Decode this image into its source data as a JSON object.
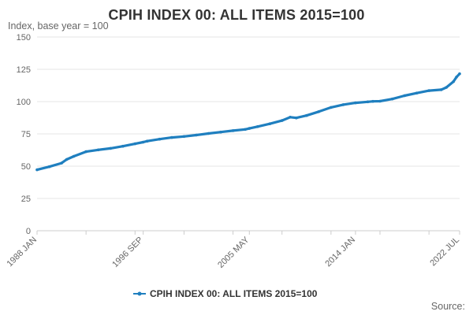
{
  "colors": {
    "series": "#1f7fbf",
    "grid": "#e6e6e6",
    "axis": "#cccccc",
    "text": "#333333",
    "muted": "#666666"
  },
  "source_label": "Source:",
  "chart_data": {
    "type": "line",
    "title": "CPIH INDEX 00: ALL ITEMS 2015=100",
    "subtitle": "Index, base year = 100",
    "xlabel": "",
    "ylabel": "",
    "ylim": [
      0,
      150
    ],
    "yticks": [
      0,
      25,
      50,
      75,
      100,
      125,
      150
    ],
    "xlim": [
      "1988 JAN",
      "2022 JUL"
    ],
    "xticks": [
      "1988 JAN",
      "1996 SEP",
      "2005 MAY",
      "2014 JAN",
      "2022 JUL"
    ],
    "grid": true,
    "legend": "bottom",
    "series": [
      {
        "name": "CPIH INDEX 00: ALL ITEMS 2015=100",
        "points": [
          [
            "1988 JAN",
            47.2
          ],
          [
            "1989 JAN",
            49.6
          ],
          [
            "1990 JAN",
            52.4
          ],
          [
            "1990 JUN",
            55.2
          ],
          [
            "1991 JAN",
            57.6
          ],
          [
            "1992 JAN",
            61.2
          ],
          [
            "1993 JAN",
            62.6
          ],
          [
            "1994 JAN",
            63.8
          ],
          [
            "1995 JAN",
            65.4
          ],
          [
            "1996 JAN",
            67.3
          ],
          [
            "1996 SEP",
            68.6
          ],
          [
            "1997 JAN",
            69.4
          ],
          [
            "1998 JAN",
            70.9
          ],
          [
            "1999 JAN",
            72.2
          ],
          [
            "2000 JAN",
            73.0
          ],
          [
            "2001 JAN",
            74.1
          ],
          [
            "2002 JAN",
            75.3
          ],
          [
            "2003 JAN",
            76.4
          ],
          [
            "2004 JAN",
            77.5
          ],
          [
            "2005 JAN",
            78.5
          ],
          [
            "2005 MAY",
            79.2
          ],
          [
            "2006 JAN",
            80.6
          ],
          [
            "2007 JAN",
            82.8
          ],
          [
            "2008 JAN",
            85.3
          ],
          [
            "2008 SEP",
            87.9
          ],
          [
            "2009 MAR",
            87.4
          ],
          [
            "2010 JAN",
            89.2
          ],
          [
            "2011 JAN",
            92.2
          ],
          [
            "2012 JAN",
            95.5
          ],
          [
            "2013 JAN",
            97.6
          ],
          [
            "2014 JAN",
            99.0
          ],
          [
            "2015 JAN",
            99.8
          ],
          [
            "2015 JUN",
            100.2
          ],
          [
            "2016 JAN",
            100.3
          ],
          [
            "2017 JAN",
            102.0
          ],
          [
            "2018 JAN",
            104.6
          ],
          [
            "2019 JAN",
            106.6
          ],
          [
            "2020 JAN",
            108.5
          ],
          [
            "2021 JAN",
            109.2
          ],
          [
            "2021 JUN",
            111.0
          ],
          [
            "2022 JAN",
            115.5
          ],
          [
            "2022 APR",
            119.0
          ],
          [
            "2022 JUL",
            121.5
          ]
        ]
      }
    ]
  }
}
